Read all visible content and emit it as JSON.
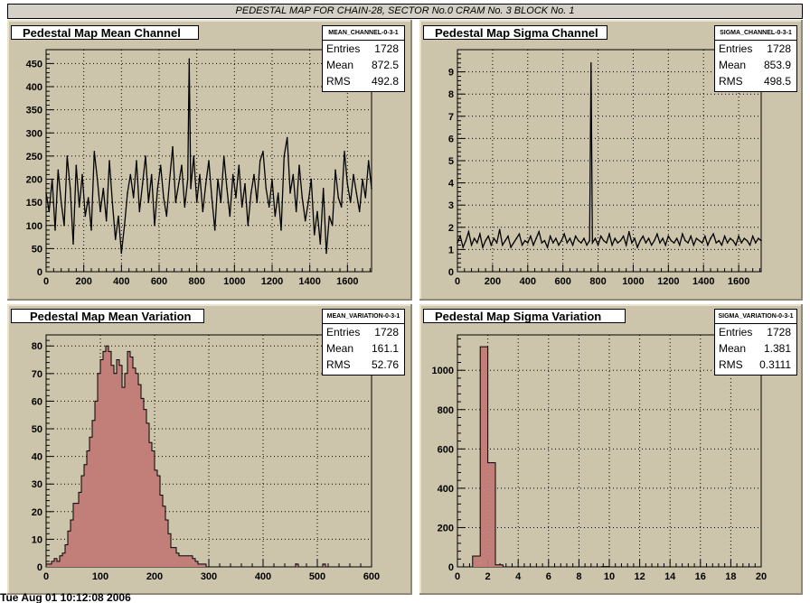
{
  "page": {
    "title": "PEDESTAL MAP FOR CHAIN-28, SECTOR No.0 CRAM No. 3 BLOCK No. 1",
    "footer": "Tue Aug 01 10:12:08 2006"
  },
  "chart_data": [
    {
      "id": "mean_channel",
      "type": "line",
      "title": "Pedestal Map Mean Channel",
      "histogram_name": "MEAN_CHANNEL-0-3-1",
      "stats": {
        "entries": "1728",
        "mean": "872.5",
        "rms": "492.8"
      },
      "stat_labels": {
        "entries": "Entries",
        "mean": "Mean",
        "rms": "RMS"
      },
      "xlim": [
        0,
        1728
      ],
      "ylim": [
        0,
        480
      ],
      "xticks": [
        "0",
        "200",
        "400",
        "600",
        "800",
        "1000",
        "1200",
        "1400",
        "1600"
      ],
      "xtick_values": [
        0,
        200,
        400,
        600,
        800,
        1000,
        1200,
        1400,
        1600
      ],
      "yticks": [
        "0",
        "50",
        "100",
        "150",
        "200",
        "250",
        "300",
        "350",
        "400",
        "450"
      ],
      "ytick_values": [
        0,
        50,
        100,
        150,
        200,
        250,
        300,
        350,
        400,
        450
      ],
      "grid": true,
      "x": [
        0,
        16,
        32,
        48,
        64,
        80,
        96,
        112,
        128,
        144,
        160,
        176,
        192,
        208,
        224,
        240,
        256,
        272,
        288,
        304,
        320,
        336,
        352,
        368,
        384,
        400,
        416,
        432,
        448,
        464,
        480,
        496,
        512,
        528,
        544,
        560,
        576,
        592,
        608,
        624,
        640,
        656,
        672,
        688,
        704,
        720,
        736,
        752,
        760,
        768,
        784,
        800,
        816,
        832,
        848,
        864,
        880,
        896,
        912,
        928,
        944,
        960,
        976,
        992,
        1008,
        1024,
        1040,
        1056,
        1072,
        1088,
        1104,
        1120,
        1136,
        1152,
        1168,
        1184,
        1200,
        1216,
        1232,
        1248,
        1264,
        1280,
        1296,
        1312,
        1328,
        1344,
        1360,
        1376,
        1392,
        1408,
        1424,
        1440,
        1456,
        1472,
        1488,
        1504,
        1520,
        1536,
        1552,
        1568,
        1584,
        1600,
        1616,
        1632,
        1648,
        1664,
        1680,
        1696,
        1712,
        1728
      ],
      "values": [
        170,
        130,
        200,
        90,
        220,
        150,
        100,
        250,
        180,
        60,
        230,
        140,
        210,
        120,
        160,
        90,
        260,
        200,
        130,
        180,
        110,
        240,
        150,
        70,
        120,
        40,
        100,
        170,
        210,
        160,
        240,
        130,
        190,
        250,
        150,
        210,
        100,
        180,
        230,
        160,
        120,
        200,
        270,
        150,
        190,
        230,
        140,
        200,
        460,
        180,
        250,
        150,
        210,
        130,
        190,
        240,
        160,
        90,
        200,
        150,
        250,
        180,
        120,
        210,
        160,
        230,
        140,
        190,
        100,
        170,
        210,
        150,
        240,
        260,
        180,
        140,
        200,
        120,
        170,
        90,
        250,
        290,
        170,
        210,
        130,
        230,
        160,
        110,
        150,
        200,
        80,
        130,
        60,
        180,
        40,
        120,
        100,
        220,
        160,
        140,
        260,
        190,
        150,
        210,
        170,
        130,
        200,
        160,
        240,
        180
      ],
      "series_color": "#000000"
    },
    {
      "id": "sigma_channel",
      "type": "line",
      "title": "Pedestal Map Sigma Channel",
      "histogram_name": "SIGMA_CHANNEL-0-3-1",
      "stats": {
        "entries": "1728",
        "mean": "853.9",
        "rms": "498.5"
      },
      "stat_labels": {
        "entries": "Entries",
        "mean": "Mean",
        "rms": "RMS"
      },
      "xlim": [
        0,
        1728
      ],
      "ylim": [
        0,
        10
      ],
      "xticks": [
        "0",
        "200",
        "400",
        "600",
        "800",
        "1000",
        "1200",
        "1400",
        "1600"
      ],
      "xtick_values": [
        0,
        200,
        400,
        600,
        800,
        1000,
        1200,
        1400,
        1600
      ],
      "yticks": [
        "0",
        "1",
        "2",
        "3",
        "4",
        "5",
        "6",
        "7",
        "8",
        "9"
      ],
      "ytick_values": [
        0,
        1,
        2,
        3,
        4,
        5,
        6,
        7,
        8,
        9
      ],
      "grid": true,
      "x": [
        0,
        16,
        32,
        48,
        64,
        80,
        96,
        112,
        128,
        144,
        160,
        176,
        192,
        208,
        224,
        240,
        256,
        272,
        288,
        304,
        320,
        336,
        352,
        368,
        384,
        400,
        416,
        432,
        448,
        464,
        480,
        496,
        512,
        528,
        544,
        560,
        576,
        592,
        608,
        624,
        640,
        656,
        672,
        688,
        704,
        720,
        736,
        752,
        760,
        768,
        784,
        800,
        816,
        832,
        848,
        864,
        880,
        896,
        912,
        928,
        944,
        960,
        976,
        992,
        1008,
        1024,
        1040,
        1056,
        1072,
        1088,
        1104,
        1120,
        1136,
        1152,
        1168,
        1184,
        1200,
        1216,
        1232,
        1248,
        1264,
        1280,
        1296,
        1312,
        1328,
        1344,
        1360,
        1376,
        1392,
        1408,
        1424,
        1440,
        1456,
        1472,
        1488,
        1504,
        1520,
        1536,
        1552,
        1568,
        1584,
        1600,
        1616,
        1632,
        1648,
        1664,
        1680,
        1696,
        1712,
        1728
      ],
      "values": [
        1.3,
        1.6,
        1.1,
        1.4,
        1.8,
        1.2,
        1.5,
        1.3,
        1.7,
        1.1,
        1.4,
        1.6,
        1.2,
        1.5,
        1.3,
        1.9,
        1.2,
        1.4,
        1.6,
        1.1,
        1.3,
        1.5,
        1.7,
        1.2,
        1.4,
        1.3,
        1.6,
        1.2,
        1.5,
        1.8,
        1.3,
        1.4,
        1.1,
        1.6,
        1.3,
        1.5,
        1.2,
        1.4,
        1.7,
        1.3,
        1.5,
        1.2,
        1.6,
        1.4,
        1.3,
        1.5,
        1.2,
        1.4,
        9.4,
        1.3,
        1.5,
        1.2,
        1.6,
        1.4,
        1.3,
        1.7,
        1.2,
        1.5,
        1.3,
        1.4,
        1.6,
        1.2,
        1.8,
        1.3,
        1.5,
        1.1,
        1.4,
        1.6,
        1.3,
        1.5,
        1.2,
        1.4,
        1.7,
        1.3,
        1.5,
        1.2,
        1.6,
        1.4,
        1.3,
        1.5,
        1.2,
        1.7,
        1.4,
        1.3,
        1.6,
        1.2,
        1.5,
        1.4,
        1.3,
        1.6,
        1.2,
        1.5,
        1.7,
        1.3,
        1.4,
        1.2,
        1.6,
        1.3,
        1.5,
        1.4,
        1.2,
        1.6,
        1.3,
        1.5,
        1.4,
        1.2,
        1.6,
        1.3,
        1.5,
        1.4
      ],
      "series_color": "#000000"
    },
    {
      "id": "mean_variation",
      "type": "bar",
      "title": "Pedestal Map Mean Variation",
      "histogram_name": "MEAN_VARIATION-0-3-1",
      "stats": {
        "entries": "1728",
        "mean": "161.1",
        "rms": "52.76"
      },
      "stat_labels": {
        "entries": "Entries",
        "mean": "Mean",
        "rms": "RMS"
      },
      "xlim": [
        0,
        600
      ],
      "ylim": [
        0,
        84
      ],
      "xticks": [
        "0",
        "100",
        "200",
        "300",
        "400",
        "500",
        "600"
      ],
      "xtick_values": [
        0,
        100,
        200,
        300,
        400,
        500,
        600
      ],
      "yticks": [
        "0",
        "10",
        "20",
        "30",
        "40",
        "50",
        "60",
        "70",
        "80"
      ],
      "ytick_values": [
        0,
        10,
        20,
        30,
        40,
        50,
        60,
        70,
        80
      ],
      "grid": true,
      "bin_width": 5,
      "bin_start": 0,
      "values": [
        1,
        1,
        2,
        3,
        2,
        4,
        5,
        8,
        13,
        17,
        23,
        23,
        27,
        33,
        37,
        42,
        47,
        53,
        60,
        70,
        75,
        78,
        80,
        78,
        73,
        70,
        75,
        73,
        65,
        70,
        78,
        76,
        72,
        70,
        66,
        61,
        57,
        52,
        45,
        42,
        35,
        33,
        26,
        22,
        17,
        12,
        7,
        7,
        5,
        4,
        4,
        4,
        4,
        4,
        3,
        2,
        1,
        1,
        1,
        0,
        0,
        0,
        0,
        0,
        0,
        0,
        0,
        0,
        0,
        0,
        0,
        0,
        0,
        0,
        0,
        0,
        0,
        0,
        0,
        0,
        0,
        0,
        0,
        0,
        0,
        0,
        0,
        0,
        0,
        0,
        0,
        0,
        1,
        0,
        0,
        0,
        0,
        0,
        0,
        0,
        0,
        0,
        1,
        0,
        0,
        0,
        0,
        0,
        0,
        0,
        0,
        0,
        0,
        0,
        0,
        0,
        0,
        0,
        0,
        0
      ],
      "fill_color": "#c27f7a",
      "line_color": "#000000"
    },
    {
      "id": "sigma_variation",
      "type": "bar",
      "title": "Pedestal Map Sigma Variation",
      "histogram_name": "SIGMA_VARIATION-0-3-1",
      "stats": {
        "entries": "1728",
        "mean": "1.381",
        "rms": "0.3111"
      },
      "stat_labels": {
        "entries": "Entries",
        "mean": "Mean",
        "rms": "RMS"
      },
      "xlim": [
        0,
        20
      ],
      "ylim": [
        0,
        1180
      ],
      "xticks": [
        "0",
        "2",
        "4",
        "6",
        "8",
        "10",
        "12",
        "14",
        "16",
        "18",
        "20"
      ],
      "xtick_values": [
        0,
        2,
        4,
        6,
        8,
        10,
        12,
        14,
        16,
        18,
        20
      ],
      "yticks": [
        "0",
        "200",
        "400",
        "600",
        "800",
        "1000"
      ],
      "ytick_values": [
        0,
        200,
        400,
        600,
        800,
        1000
      ],
      "grid": true,
      "bin_width": 0.5,
      "bin_start": 0,
      "values": [
        0,
        0,
        55,
        1120,
        530,
        10,
        0,
        0,
        0,
        0,
        0,
        0,
        0,
        0,
        0,
        0,
        0,
        0,
        0,
        2,
        0,
        0,
        0,
        0,
        0,
        0,
        0,
        0,
        0,
        0,
        0,
        0,
        0,
        0,
        0,
        0,
        0,
        0,
        0,
        0
      ],
      "fill_color": "#c27f7a",
      "line_color": "#000000"
    }
  ]
}
